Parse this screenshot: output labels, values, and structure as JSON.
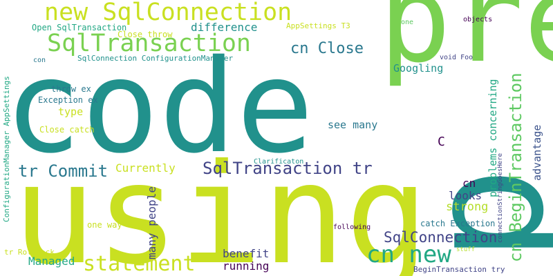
{
  "words": {
    "code": "code",
    "pre": "pre",
    "using": "using",
    "p": "p",
    "new_sqlconnection": "new SqlConnection",
    "sqltransaction": "SqlTransaction",
    "cn_close": "cn Close",
    "cn_new": "cn new",
    "statement": "statement",
    "tr_commit": "tr Commit",
    "sqltransaction_tr": "SqlTransaction tr",
    "cn_begintransaction": "cn BeginTransaction",
    "sqlconnection": "SqlConnection",
    "difference": "difference",
    "googling": "Googling",
    "c": "C",
    "see_many": "see many",
    "currently": "Currently",
    "many_people": "many people",
    "strong": "strong",
    "looks": "looks",
    "cn": "cn",
    "managed": "Managed",
    "running": "running",
    "benefit": "benefit",
    "type": "type",
    "throw_ex": "throw ex",
    "exception_ex": "Exception ex",
    "close_catch": "Close catch",
    "open_sqltransaction": "Open SqlTransaction",
    "close_throw": "Close throw",
    "appsettings_t3": "AppSettings T3",
    "one": "one",
    "objects": "objects",
    "void_foo": "void Foo",
    "con": "con",
    "sqlconnection_configurationmanager": "SqlConnection ConfigurationManager",
    "configurationmanager_appsettings": "ConfigurationManager AppSettings",
    "problems_concerning": "problems concerning",
    "advantage": "advantage",
    "connectionstringgoeshere": "connectionStringGoesHere",
    "catch_exception": "catch Exception",
    "one_way": "one way",
    "following": "following",
    "clarificaton": "Clarificaton",
    "tr_rollback": "tr Rollback",
    "stuff": "stuff",
    "begintransaction_try": "BeginTransaction try"
  }
}
